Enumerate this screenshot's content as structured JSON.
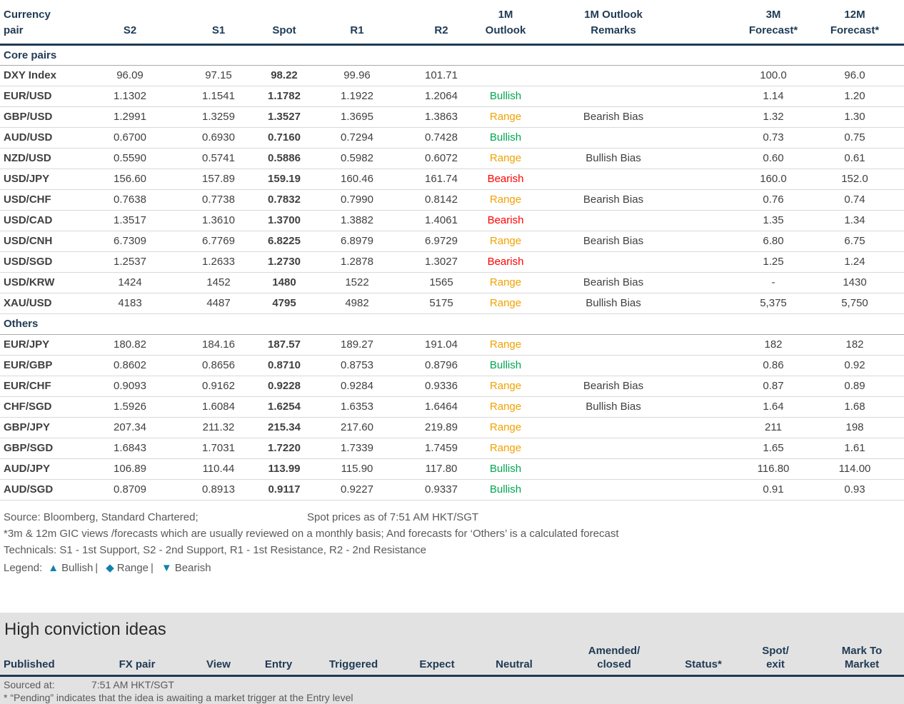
{
  "colors": {
    "navy": "#1F3A54",
    "text": "#404040",
    "muted": "#595959",
    "bullish": "#00A651",
    "range": "#F0A202",
    "bearish": "#FF0000",
    "legend_blue": "#1181AE",
    "section_bg": "#E2E2E2",
    "row_line": "#D9D9D9",
    "section_line": "#A8A8A8"
  },
  "fx_table": {
    "headers": [
      {
        "name": "col-currency-pair",
        "lines": [
          "Currency",
          "pair"
        ],
        "align": "left"
      },
      {
        "name": "col-s2",
        "lines": [
          "S2"
        ]
      },
      {
        "name": "col-s1",
        "lines": [
          "S1"
        ]
      },
      {
        "name": "col-spot",
        "lines": [
          "Spot"
        ]
      },
      {
        "name": "col-r1",
        "lines": [
          "R1"
        ]
      },
      {
        "name": "col-r2",
        "lines": [
          "R2"
        ]
      },
      {
        "name": "col-1m-outlook",
        "lines": [
          "1M",
          "Outlook"
        ]
      },
      {
        "name": "col-1m-outlook-remarks",
        "lines": [
          "1M Outlook",
          "Remarks"
        ]
      },
      {
        "name": "col-spacer",
        "lines": []
      },
      {
        "name": "col-3m-forecast",
        "lines": [
          "3M",
          "Forecast*"
        ]
      },
      {
        "name": "col-12m-forecast",
        "lines": [
          "12M",
          "Forecast*"
        ]
      }
    ],
    "sections": [
      {
        "label": "Core pairs",
        "rows": [
          {
            "pair": "DXY Index",
            "s2": "96.09",
            "s1": "97.15",
            "spot": "98.22",
            "r1": "99.96",
            "r2": "101.71",
            "outlook": "",
            "remarks": "",
            "f3m": "100.0",
            "f12m": "96.0"
          },
          {
            "pair": "EUR/USD",
            "s2": "1.1302",
            "s1": "1.1541",
            "spot": "1.1782",
            "r1": "1.1922",
            "r2": "1.2064",
            "outlook": "Bullish",
            "remarks": "",
            "f3m": "1.14",
            "f12m": "1.20"
          },
          {
            "pair": "GBP/USD",
            "s2": "1.2991",
            "s1": "1.3259",
            "spot": "1.3527",
            "r1": "1.3695",
            "r2": "1.3863",
            "outlook": "Range",
            "remarks": "Bearish Bias",
            "f3m": "1.32",
            "f12m": "1.30"
          },
          {
            "pair": "AUD/USD",
            "s2": "0.6700",
            "s1": "0.6930",
            "spot": "0.7160",
            "r1": "0.7294",
            "r2": "0.7428",
            "outlook": "Bullish",
            "remarks": "",
            "f3m": "0.73",
            "f12m": "0.75"
          },
          {
            "pair": "NZD/USD",
            "s2": "0.5590",
            "s1": "0.5741",
            "spot": "0.5886",
            "r1": "0.5982",
            "r2": "0.6072",
            "outlook": "Range",
            "remarks": "Bullish Bias",
            "f3m": "0.60",
            "f12m": "0.61"
          },
          {
            "pair": "USD/JPY",
            "s2": "156.60",
            "s1": "157.89",
            "spot": "159.19",
            "r1": "160.46",
            "r2": "161.74",
            "outlook": "Bearish",
            "remarks": "",
            "f3m": "160.0",
            "f12m": "152.0"
          },
          {
            "pair": "USD/CHF",
            "s2": "0.7638",
            "s1": "0.7738",
            "spot": "0.7832",
            "r1": "0.7990",
            "r2": "0.8142",
            "outlook": "Range",
            "remarks": "Bearish Bias",
            "f3m": "0.76",
            "f12m": "0.74"
          },
          {
            "pair": "USD/CAD",
            "s2": "1.3517",
            "s1": "1.3610",
            "spot": "1.3700",
            "r1": "1.3882",
            "r2": "1.4061",
            "outlook": "Bearish",
            "remarks": "",
            "f3m": "1.35",
            "f12m": "1.34"
          },
          {
            "pair": "USD/CNH",
            "s2": "6.7309",
            "s1": "6.7769",
            "spot": "6.8225",
            "r1": "6.8979",
            "r2": "6.9729",
            "outlook": "Range",
            "remarks": "Bearish Bias",
            "f3m": "6.80",
            "f12m": "6.75"
          },
          {
            "pair": "USD/SGD",
            "s2": "1.2537",
            "s1": "1.2633",
            "spot": "1.2730",
            "r1": "1.2878",
            "r2": "1.3027",
            "outlook": "Bearish",
            "remarks": "",
            "f3m": "1.25",
            "f12m": "1.24"
          },
          {
            "pair": "USD/KRW",
            "s2": "1424",
            "s1": "1452",
            "spot": "1480",
            "r1": "1522",
            "r2": "1565",
            "outlook": "Range",
            "remarks": "Bearish Bias",
            "f3m": "-",
            "f12m": "1430"
          },
          {
            "pair": "XAU/USD",
            "s2": "4183",
            "s1": "4487",
            "spot": "4795",
            "r1": "4982",
            "r2": "5175",
            "outlook": "Range",
            "remarks": "Bullish Bias",
            "f3m": "5,375",
            "f12m": "5,750"
          }
        ]
      },
      {
        "label": "Others",
        "rows": [
          {
            "pair": "EUR/JPY",
            "s2": "180.82",
            "s1": "184.16",
            "spot": "187.57",
            "r1": "189.27",
            "r2": "191.04",
            "outlook": "Range",
            "remarks": "",
            "f3m": "182",
            "f12m": "182"
          },
          {
            "pair": "EUR/GBP",
            "s2": "0.8602",
            "s1": "0.8656",
            "spot": "0.8710",
            "r1": "0.8753",
            "r2": "0.8796",
            "outlook": "Bullish",
            "remarks": "",
            "f3m": "0.86",
            "f12m": "0.92"
          },
          {
            "pair": "EUR/CHF",
            "s2": "0.9093",
            "s1": "0.9162",
            "spot": "0.9228",
            "r1": "0.9284",
            "r2": "0.9336",
            "outlook": "Range",
            "remarks": "Bearish Bias",
            "f3m": "0.87",
            "f12m": "0.89"
          },
          {
            "pair": "CHF/SGD",
            "s2": "1.5926",
            "s1": "1.6084",
            "spot": "1.6254",
            "r1": "1.6353",
            "r2": "1.6464",
            "outlook": "Range",
            "remarks": "Bullish Bias",
            "f3m": "1.64",
            "f12m": "1.68"
          },
          {
            "pair": "GBP/JPY",
            "s2": "207.34",
            "s1": "211.32",
            "spot": "215.34",
            "r1": "217.60",
            "r2": "219.89",
            "outlook": "Range",
            "remarks": "",
            "f3m": "211",
            "f12m": "198"
          },
          {
            "pair": "GBP/SGD",
            "s2": "1.6843",
            "s1": "1.7031",
            "spot": "1.7220",
            "r1": "1.7339",
            "r2": "1.7459",
            "outlook": "Range",
            "remarks": "",
            "f3m": "1.65",
            "f12m": "1.61"
          },
          {
            "pair": "AUD/JPY",
            "s2": "106.89",
            "s1": "110.44",
            "spot": "113.99",
            "r1": "115.90",
            "r2": "117.80",
            "outlook": "Bullish",
            "remarks": "",
            "f3m": "116.80",
            "f12m": "114.00"
          },
          {
            "pair": "AUD/SGD",
            "s2": "0.8709",
            "s1": "0.8913",
            "spot": "0.9117",
            "r1": "0.9227",
            "r2": "0.9337",
            "outlook": "Bullish",
            "remarks": "",
            "f3m": "0.91",
            "f12m": "0.93"
          }
        ]
      }
    ]
  },
  "footnotes": {
    "source": "Source: Bloomberg, Standard Chartered;",
    "spot_as_of": "Spot prices as of  7:51 AM HKT/SGT",
    "note1": "*3m & 12m GIC views /forecasts which are usually reviewed on a monthly basis; And forecasts for ‘Others’ is a calculated forecast",
    "note2": "Technicals: S1 - 1st Support, S2 - 2nd Support, R1 - 1st Resistance, R2 - 2nd Resistance",
    "legend": {
      "label": "Legend:",
      "items": [
        {
          "glyph": "▲",
          "glyph_name": "bullish-triangle-up-icon",
          "label": "Bullish"
        },
        {
          "glyph": "◆",
          "glyph_name": "range-diamond-icon",
          "label": "Range"
        },
        {
          "glyph": "▼",
          "glyph_name": "bearish-triangle-down-icon",
          "label": "Bearish"
        }
      ]
    }
  },
  "high_conviction": {
    "title": "High conviction ideas",
    "headers": [
      {
        "name": "col-published",
        "lines": [
          "Published"
        ],
        "align": "left"
      },
      {
        "name": "col-fx-pair",
        "lines": [
          "FX pair"
        ]
      },
      {
        "name": "col-view",
        "lines": [
          "View"
        ]
      },
      {
        "name": "col-entry",
        "lines": [
          "Entry"
        ]
      },
      {
        "name": "col-triggered",
        "lines": [
          "Triggered"
        ]
      },
      {
        "name": "col-expect",
        "lines": [
          "Expect"
        ]
      },
      {
        "name": "col-neutral",
        "lines": [
          "Neutral"
        ]
      },
      {
        "name": "col-amended-closed",
        "lines": [
          "Amended/",
          "closed"
        ]
      },
      {
        "name": "col-status",
        "lines": [
          "Status*"
        ]
      },
      {
        "name": "col-spot-exit",
        "lines": [
          "Spot/",
          "exit"
        ]
      },
      {
        "name": "col-mark-to-market",
        "lines": [
          "Mark To",
          "Market"
        ]
      }
    ],
    "sourced_at_label": "Sourced at:",
    "sourced_at_value": "7:51 AM HKT/SGT",
    "pending_note": "* “Pending” indicates that the idea is awaiting a market trigger at the Entry level"
  }
}
